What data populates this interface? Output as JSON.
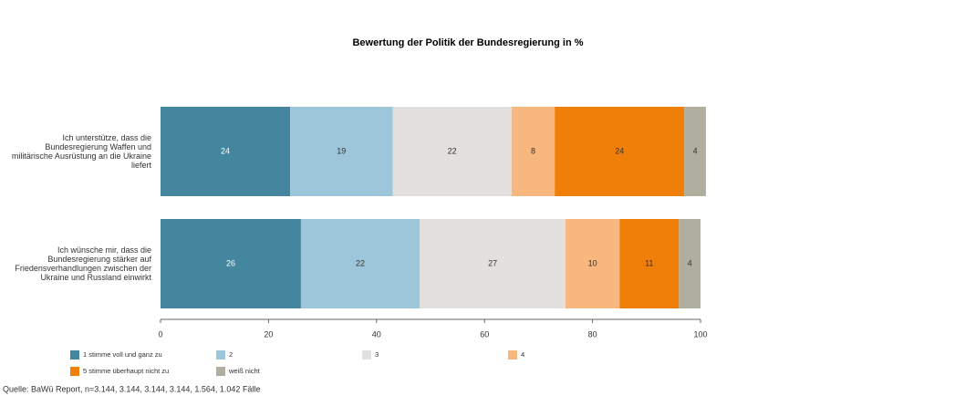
{
  "chart_data": {
    "type": "bar",
    "orientation": "horizontal",
    "stacked": true,
    "title": "Bewertung der Politik der Bundesregierung in %",
    "categories": [
      "Ich unterstütze, dass die Bundesregierung Waffen und militärische Ausrüstung an die Ukraine liefert",
      "Ich wünsche mir, dass die Bundesregierung stärker auf Friedensverhandlungen zwischen der Ukraine und Russland einwirkt"
    ],
    "series": [
      {
        "name": "1 stimme voll und ganz zu",
        "color": "#43869e",
        "values": [
          24,
          26
        ]
      },
      {
        "name": "2",
        "color": "#9dc6da",
        "values": [
          19,
          22
        ]
      },
      {
        "name": "3",
        "color": "#e3e1df",
        "values": [
          22,
          27
        ]
      },
      {
        "name": "4",
        "color": "#f7b77e",
        "values": [
          8,
          10
        ]
      },
      {
        "name": "5 stimme überhaupt nicht zu",
        "color": "#f07f0a",
        "values": [
          24,
          11
        ]
      },
      {
        "name": "weiß nicht",
        "color": "#b0ae9e",
        "values": [
          4,
          4
        ]
      }
    ],
    "xlim": [
      0,
      100
    ],
    "xticks": [
      0,
      20,
      40,
      60,
      80,
      100
    ],
    "source": "Quelle: BaWü Report, n=3.144, 3.144, 3.144, 3.144, 1.564, 1.042 Fälle"
  }
}
